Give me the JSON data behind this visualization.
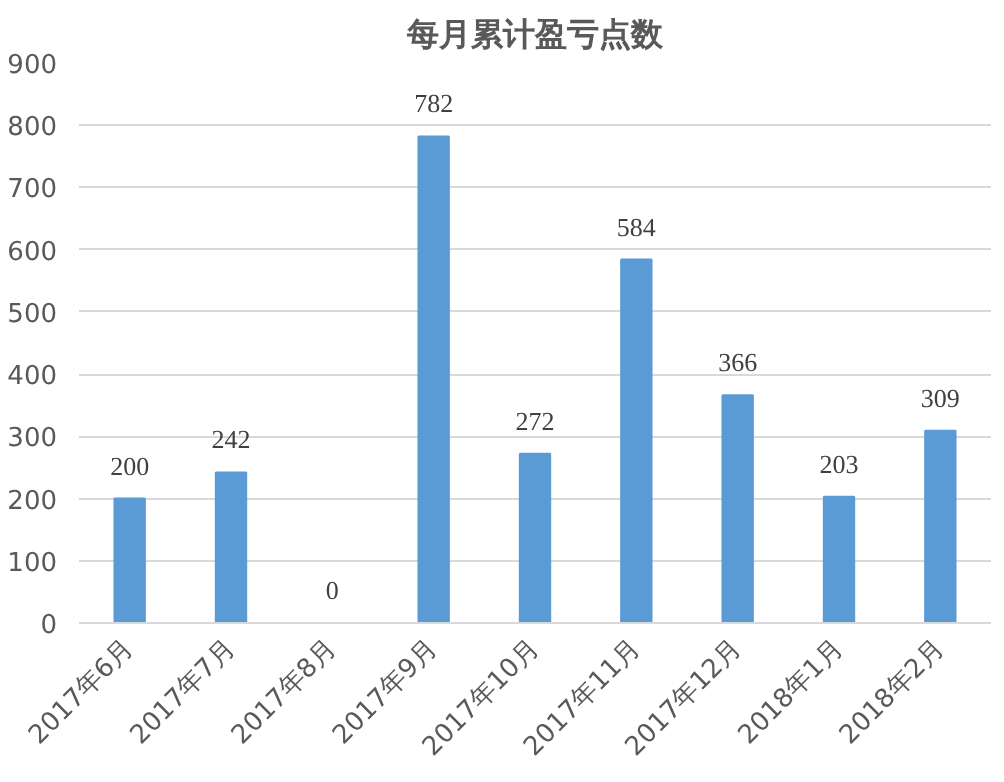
{
  "chart_data": {
    "type": "bar",
    "title": "每月累计盈亏点数",
    "categories": [
      "2017年6月",
      "2017年7月",
      "2017年8月",
      "2017年9月",
      "2017年10月",
      "2017年11月",
      "2017年12月",
      "2018年1月",
      "2018年2月"
    ],
    "values": [
      200,
      242,
      0,
      782,
      272,
      584,
      366,
      203,
      309
    ],
    "color": "#5b9bd5",
    "ylim": [
      0,
      900
    ],
    "yticks": [
      0,
      100,
      200,
      300,
      400,
      500,
      600,
      700,
      800,
      900
    ],
    "grid": "y",
    "data_labels": true
  }
}
